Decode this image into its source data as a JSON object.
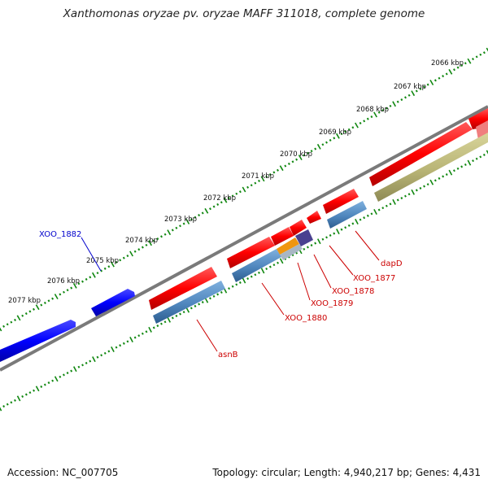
{
  "title": "Xanthomonas oryzae pv. oryzae MAFF 311018, complete genome",
  "footer": {
    "accession": "Accession: NC_007705",
    "stats": "Topology: circular; Length: 4,940,217 bp; Genes: 4,431"
  },
  "kbp_labels": [
    "2066 kbp",
    "2067 kbp",
    "2068 kbp",
    "2069 kbp",
    "2070 kbp",
    "2071 kbp",
    "2072 kbp",
    "2073 kbp",
    "2074 kbp",
    "2075 kbp",
    "2076 kbp",
    "2077 kbp"
  ],
  "gene_labels": {
    "xoo1882": "XOO_1882",
    "asnB": "asnB",
    "xoo1880": "XOO_1880",
    "xoo1879": "XOO_1879",
    "xoo1878": "XOO_1878",
    "xoo1877": "XOO_1877",
    "dapD": "dapD"
  },
  "colors": {
    "forward_gene": "#ff0000",
    "cds_steelblue": "#4f86bd",
    "reverse_gene": "#0000ff",
    "olive_feature": "#b8b475",
    "orange_feature": "#f0960f",
    "purple_feature": "#4a4190",
    "backbone": "#7a7a7a",
    "tick": "#118811",
    "label_blue": "#0000cc",
    "label_red": "#cc0000"
  }
}
